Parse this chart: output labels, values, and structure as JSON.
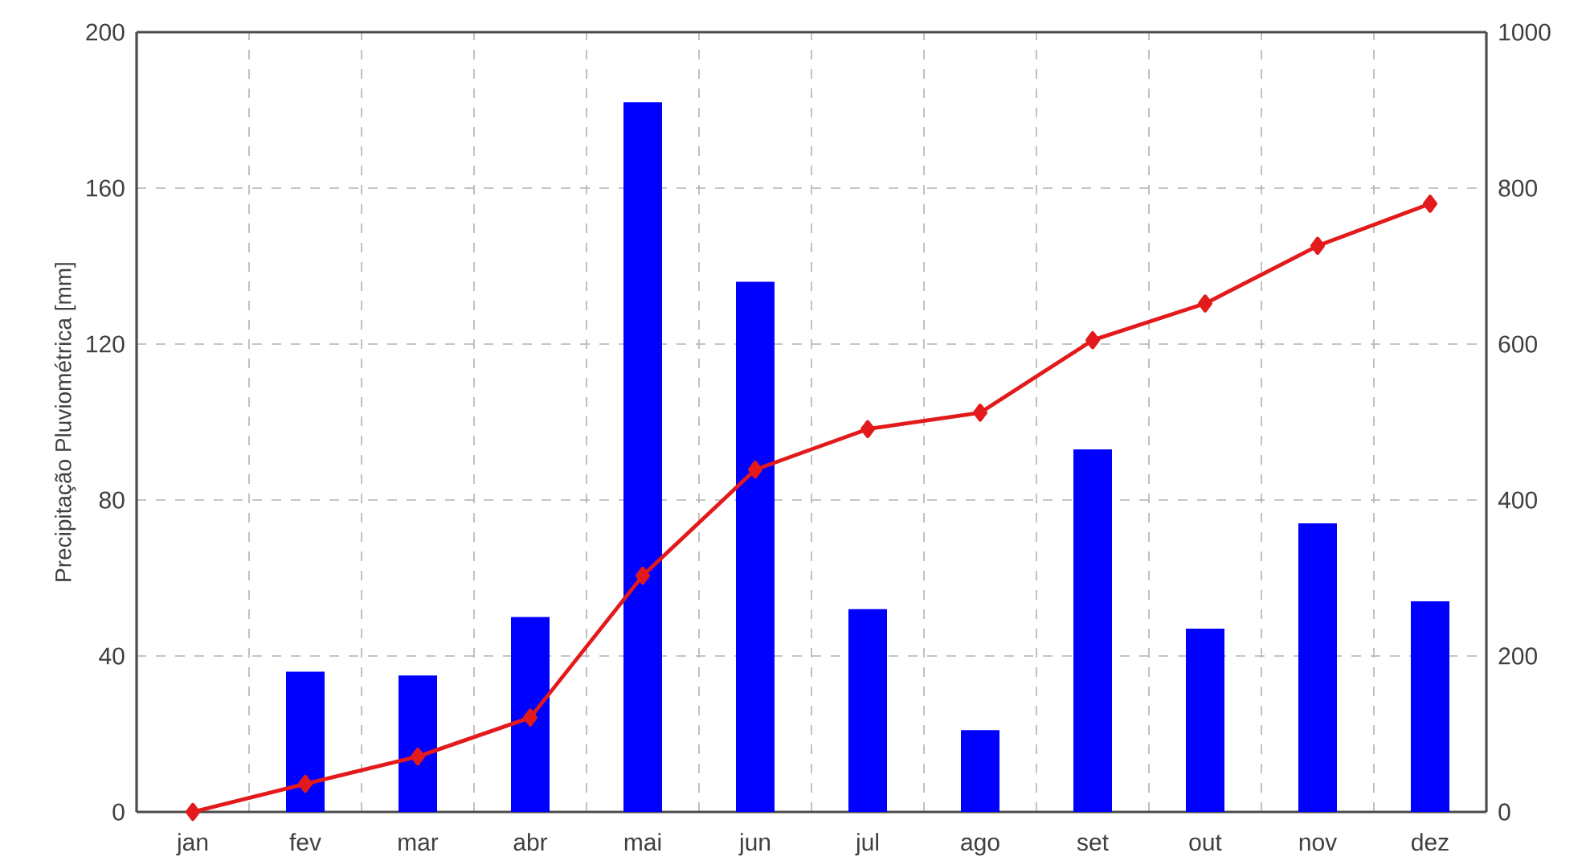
{
  "chart_data": {
    "type": "bar",
    "ylabel": "Precipitação Pluviométrica [mm]",
    "categories": [
      "jan",
      "fev",
      "mar",
      "abr",
      "mai",
      "jun",
      "jul",
      "ago",
      "set",
      "out",
      "nov",
      "dez"
    ],
    "ylim": [
      0,
      200
    ],
    "yticks": [
      0,
      40,
      80,
      120,
      160,
      200
    ],
    "y2lim": [
      0,
      1000
    ],
    "y2ticks": [
      0,
      200,
      400,
      600,
      800,
      1000
    ],
    "grid": true,
    "series": [
      {
        "color": "#0000ff",
        "values": [
          0,
          36,
          35,
          50,
          182,
          136,
          52,
          21,
          93,
          47,
          74,
          54
        ]
      },
      {
        "type": "line",
        "axis": "y2",
        "color": "#e31a1c",
        "marker": "diamond",
        "line_style": "solid",
        "values": [
          0,
          36,
          71,
          121,
          303,
          439,
          491,
          512,
          605,
          652,
          726,
          780
        ]
      }
    ]
  }
}
